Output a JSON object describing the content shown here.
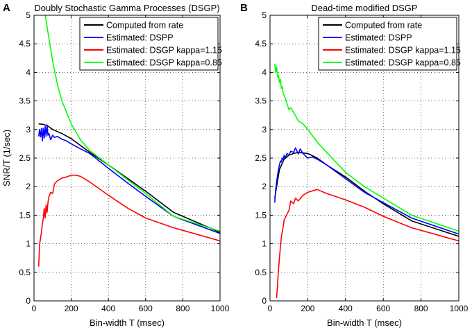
{
  "chart_data": [
    {
      "type": "line",
      "panel_label": "A",
      "title": "Doubly Stochastic Gamma Processes (DSGP)",
      "xlabel": "Bin-width T (msec)",
      "ylabel": "SNR/T (1/sec)",
      "xlim": [
        0,
        1000
      ],
      "ylim": [
        0,
        5
      ],
      "xticks": [
        0,
        200,
        400,
        600,
        800,
        1000
      ],
      "yticks": [
        0,
        0.5,
        1,
        1.5,
        2,
        2.5,
        3,
        3.5,
        4,
        4.5,
        5
      ],
      "grid": true,
      "legend_position": "top-right",
      "series": [
        {
          "name": "Computed from rate",
          "color": "#000000",
          "x": [
            25,
            50,
            75,
            100,
            150,
            200,
            300,
            400,
            500,
            600,
            750,
            1000
          ],
          "y": [
            3.1,
            3.09,
            3.06,
            3.0,
            2.93,
            2.84,
            2.6,
            2.38,
            2.15,
            1.92,
            1.55,
            1.2
          ]
        },
        {
          "name": "Estimated: DSPP",
          "color": "#0000ff",
          "x": [
            25,
            30,
            35,
            40,
            45,
            50,
            55,
            60,
            65,
            70,
            75,
            80,
            90,
            100,
            110,
            125,
            150,
            175,
            200,
            250,
            300,
            400,
            500,
            600,
            750,
            1000
          ],
          "y": [
            2.88,
            3.0,
            2.87,
            3.02,
            2.8,
            3.02,
            2.85,
            3.05,
            2.88,
            3.08,
            2.9,
            2.93,
            2.82,
            2.9,
            2.86,
            2.88,
            2.83,
            2.8,
            2.75,
            2.66,
            2.58,
            2.32,
            2.07,
            1.83,
            1.48,
            1.18
          ]
        },
        {
          "name": "Estimated: DSGP kappa=1.15",
          "color": "#ff0000",
          "x": [
            25,
            30,
            35,
            40,
            45,
            50,
            55,
            60,
            65,
            70,
            75,
            80,
            90,
            100,
            110,
            125,
            150,
            175,
            200,
            225,
            250,
            300,
            400,
            500,
            600,
            750,
            1000
          ],
          "y": [
            0.6,
            0.98,
            1.1,
            1.2,
            1.35,
            1.45,
            1.62,
            1.45,
            1.68,
            1.55,
            1.72,
            1.82,
            1.9,
            1.88,
            2.05,
            2.1,
            2.15,
            2.17,
            2.2,
            2.2,
            2.18,
            2.08,
            1.85,
            1.63,
            1.45,
            1.28,
            1.05
          ]
        },
        {
          "name": "Estimated: DSGP kappa=0.85",
          "color": "#00ff00",
          "x": [
            60,
            70,
            80,
            100,
            125,
            150,
            175,
            200,
            250,
            300,
            400,
            500,
            600,
            750,
            1000
          ],
          "y": [
            5.0,
            4.8,
            4.6,
            4.2,
            3.8,
            3.5,
            3.3,
            3.1,
            2.82,
            2.63,
            2.38,
            2.13,
            1.88,
            1.48,
            1.22
          ]
        }
      ]
    },
    {
      "type": "line",
      "panel_label": "B",
      "title": "Dead-time modified DSGP",
      "xlabel": "Bin-width T (msec)",
      "ylabel": "",
      "xlim": [
        0,
        1000
      ],
      "ylim": [
        0,
        5
      ],
      "xticks": [
        0,
        200,
        400,
        600,
        800,
        1000
      ],
      "yticks": [
        0,
        0.5,
        1,
        1.5,
        2,
        2.5,
        3,
        3.5,
        4,
        4.5,
        5
      ],
      "grid": true,
      "legend_position": "top-right",
      "series": [
        {
          "name": "Computed from rate",
          "color": "#000000",
          "x": [
            25,
            50,
            75,
            100,
            125,
            150,
            200,
            250,
            300,
            400,
            500,
            600,
            750,
            1000
          ],
          "y": [
            1.8,
            2.3,
            2.48,
            2.55,
            2.58,
            2.6,
            2.58,
            2.5,
            2.38,
            2.17,
            1.92,
            1.7,
            1.4,
            1.13
          ]
        },
        {
          "name": "Estimated: DSPP",
          "color": "#0000ff",
          "x": [
            25,
            30,
            35,
            40,
            45,
            50,
            55,
            60,
            65,
            70,
            75,
            80,
            90,
            100,
            110,
            125,
            135,
            150,
            160,
            175,
            200,
            225,
            250,
            300,
            400,
            500,
            600,
            750,
            1000
          ],
          "y": [
            1.72,
            1.95,
            2.08,
            2.2,
            2.3,
            2.38,
            2.45,
            2.43,
            2.5,
            2.47,
            2.55,
            2.5,
            2.58,
            2.55,
            2.62,
            2.6,
            2.68,
            2.57,
            2.66,
            2.58,
            2.5,
            2.52,
            2.48,
            2.38,
            2.14,
            1.9,
            1.72,
            1.45,
            1.17
          ]
        },
        {
          "name": "Estimated: DSGP kappa=1.15",
          "color": "#ff0000",
          "x": [
            35,
            40,
            45,
            50,
            55,
            60,
            65,
            70,
            75,
            80,
            90,
            100,
            110,
            125,
            135,
            150,
            175,
            200,
            250,
            300,
            400,
            500,
            600,
            750,
            1000
          ],
          "y": [
            0.05,
            0.3,
            0.55,
            0.75,
            0.95,
            1.1,
            1.22,
            1.3,
            1.42,
            1.45,
            1.52,
            1.58,
            1.75,
            1.7,
            1.8,
            1.75,
            1.85,
            1.9,
            1.95,
            1.88,
            1.77,
            1.64,
            1.48,
            1.28,
            1.05
          ]
        },
        {
          "name": "Estimated: DSGP kappa=0.85",
          "color": "#00ff00",
          "x": [
            25,
            30,
            35,
            40,
            45,
            50,
            55,
            60,
            65,
            70,
            75,
            80,
            90,
            100,
            110,
            125,
            150,
            175,
            200,
            250,
            300,
            400,
            500,
            600,
            750,
            1000
          ],
          "y": [
            4.15,
            4.0,
            4.1,
            3.92,
            3.95,
            3.82,
            3.88,
            3.72,
            3.75,
            3.62,
            3.6,
            3.55,
            3.45,
            3.35,
            3.38,
            3.3,
            3.15,
            3.1,
            3.0,
            2.78,
            2.6,
            2.25,
            2.0,
            1.8,
            1.5,
            1.22
          ]
        }
      ]
    }
  ]
}
